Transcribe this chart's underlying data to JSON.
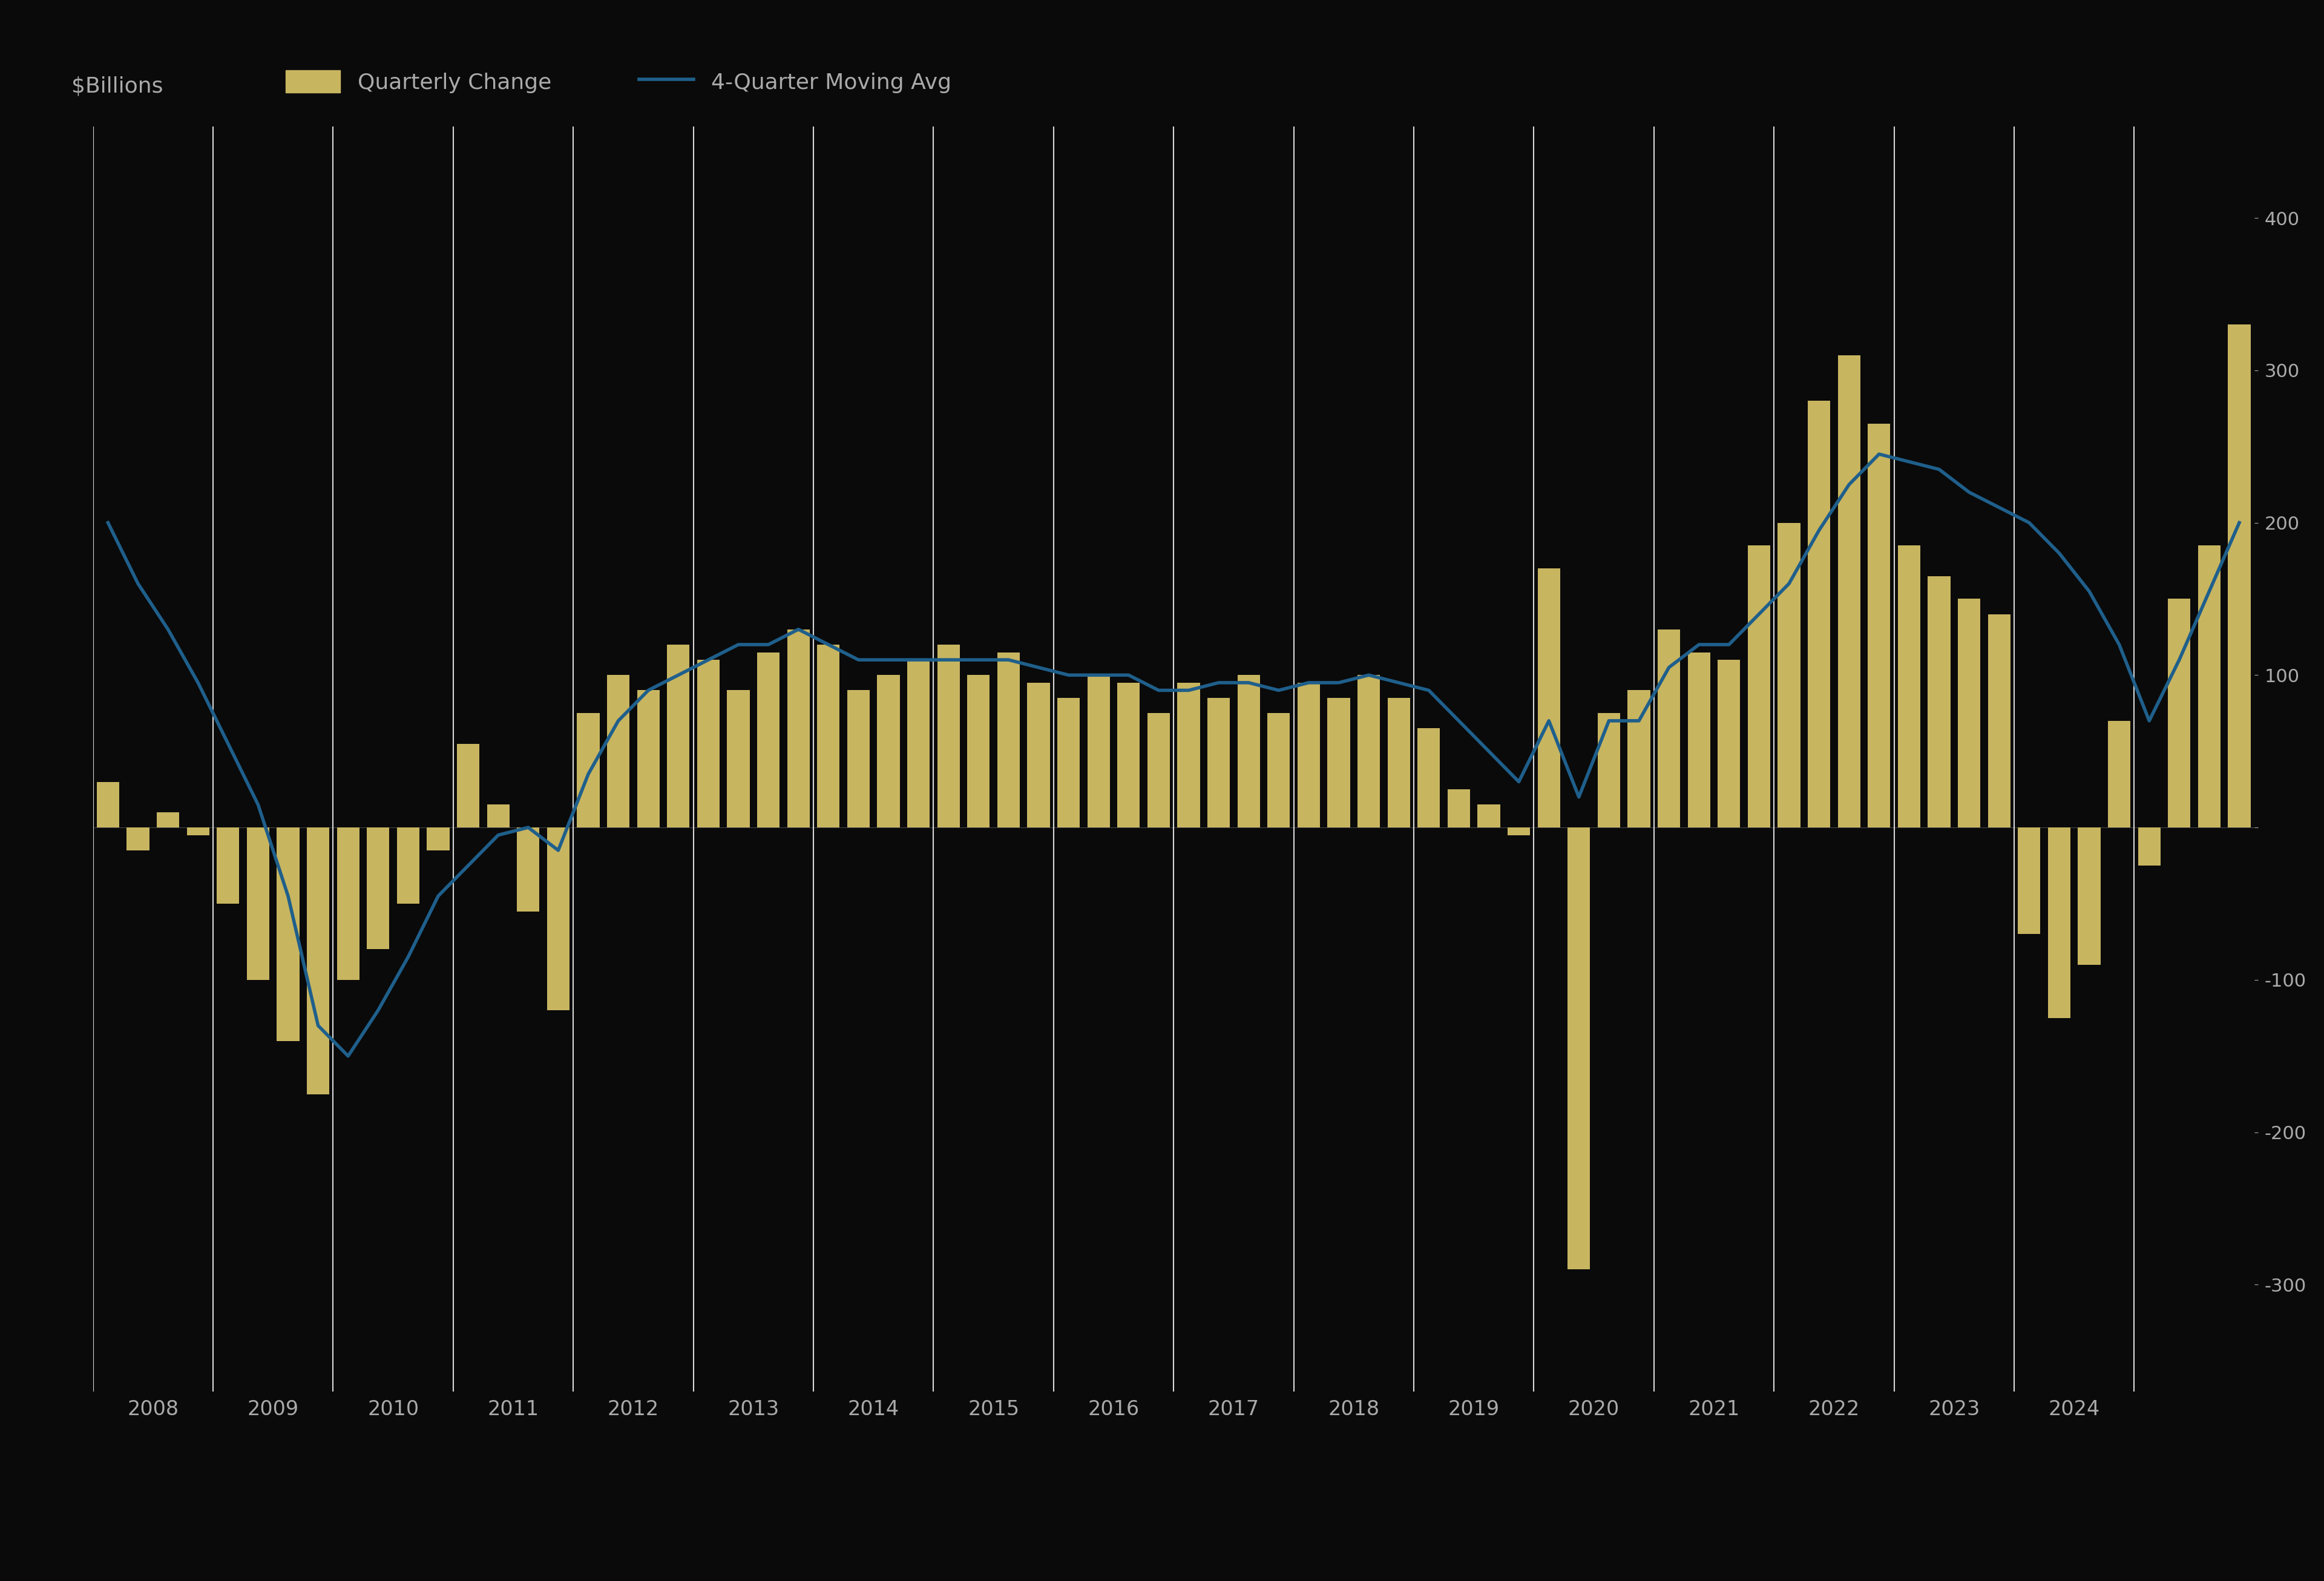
{
  "background_color": "#0a0a0a",
  "bar_color": "#c8b560",
  "line_color": "#1f5f8b",
  "text_color": "#aaaaaa",
  "grid_color": "#ffffff",
  "legend_bar_label": "Quarterly Change",
  "legend_line_label": "4-Quarter Moving Avg",
  "ylabel_left": "$Billions",
  "bar_width": 0.75,
  "bar_values": [
    30,
    -15,
    10,
    -5,
    -50,
    -100,
    -140,
    -175,
    -100,
    -80,
    -50,
    -15,
    55,
    15,
    -55,
    -120,
    75,
    100,
    90,
    120,
    110,
    90,
    115,
    130,
    120,
    90,
    100,
    110,
    120,
    100,
    115,
    95,
    85,
    100,
    95,
    75,
    95,
    85,
    100,
    75,
    95,
    85,
    100,
    85,
    65,
    25,
    15,
    -5,
    170,
    -290,
    75,
    90,
    130,
    115,
    110,
    185,
    200,
    280,
    310,
    265,
    185,
    165,
    150,
    140,
    -70,
    -125,
    -90,
    70,
    -25,
    150,
    185,
    330
  ],
  "line_values": [
    200,
    160,
    130,
    95,
    55,
    15,
    -45,
    -130,
    -150,
    -120,
    -85,
    -45,
    -25,
    -5,
    0,
    -15,
    35,
    70,
    90,
    100,
    110,
    120,
    120,
    130,
    120,
    110,
    110,
    110,
    110,
    110,
    110,
    105,
    100,
    100,
    100,
    90,
    90,
    95,
    95,
    90,
    95,
    95,
    100,
    95,
    90,
    70,
    50,
    30,
    70,
    20,
    70,
    70,
    105,
    120,
    120,
    140,
    160,
    195,
    225,
    245,
    240,
    235,
    220,
    210,
    200,
    180,
    155,
    120,
    70,
    110,
    155,
    200
  ],
  "yticks": [
    -300,
    -200,
    -100,
    0,
    100,
    200,
    300,
    400
  ],
  "ylim": [
    -370,
    460
  ],
  "xtick_years": [
    "2008",
    "2009",
    "2010",
    "2011",
    "2012",
    "2013",
    "2014",
    "2015",
    "2016",
    "2017",
    "2018",
    "2019",
    "2020",
    "2021",
    "2022",
    "2023",
    "2024"
  ],
  "n_quarters": 72
}
